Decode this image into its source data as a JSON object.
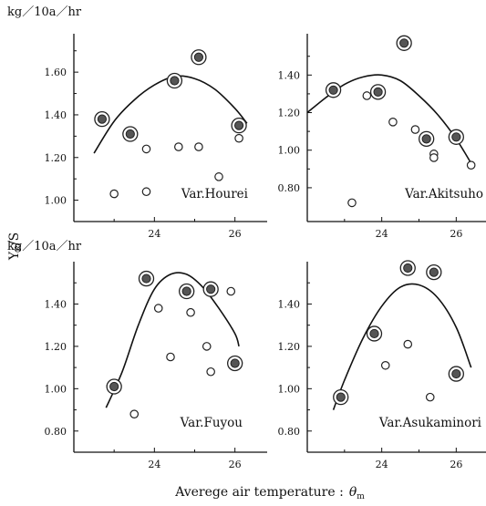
{
  "figure": {
    "y_label": "Y",
    "y_label_sub": "R",
    "y_label_tail": "/S",
    "x_label": "Averege air temperature :",
    "x_label_symbol": "θ",
    "x_label_symbol_sub": "m",
    "unit_top": "kg／10a／hr",
    "unit_bottom": "kg／10a／hr"
  },
  "chart_data": [
    {
      "type": "scatter",
      "label": "Var.Hourei",
      "xlim": [
        22.0,
        26.8
      ],
      "ylim": [
        0.9,
        1.78
      ],
      "xticks": [
        24,
        26
      ],
      "xtick_labels": [
        "24",
        "26"
      ],
      "yticks": [
        1.0,
        1.2,
        1.4,
        1.6
      ],
      "ytick_labels": [
        "1.00",
        "1.20",
        "1.40",
        "1.60"
      ],
      "curve": [
        [
          22.5,
          1.22
        ],
        [
          23.0,
          1.37
        ],
        [
          23.5,
          1.47
        ],
        [
          24.0,
          1.54
        ],
        [
          24.5,
          1.58
        ],
        [
          25.0,
          1.57
        ],
        [
          25.5,
          1.52
        ],
        [
          26.0,
          1.43
        ],
        [
          26.3,
          1.36
        ]
      ],
      "points_circled": [
        [
          22.7,
          1.38
        ],
        [
          23.4,
          1.31
        ],
        [
          24.5,
          1.56
        ],
        [
          25.1,
          1.67
        ],
        [
          26.1,
          1.35
        ]
      ],
      "points_open": [
        [
          23.0,
          1.03
        ],
        [
          23.8,
          1.24
        ],
        [
          23.8,
          1.04
        ],
        [
          24.6,
          1.25
        ],
        [
          25.1,
          1.25
        ],
        [
          25.6,
          1.11
        ],
        [
          26.1,
          1.29
        ]
      ]
    },
    {
      "type": "scatter",
      "label": "Var.Akitsuho",
      "xlim": [
        22.0,
        26.8
      ],
      "ylim": [
        0.62,
        1.62
      ],
      "xticks": [
        24,
        26
      ],
      "xtick_labels": [
        "24",
        "26"
      ],
      "yticks": [
        0.8,
        1.0,
        1.2,
        1.4
      ],
      "ytick_labels": [
        "0.80",
        "1.00",
        "1.20",
        "1.40"
      ],
      "curve": [
        [
          22.0,
          1.2
        ],
        [
          22.5,
          1.28
        ],
        [
          23.0,
          1.35
        ],
        [
          23.5,
          1.39
        ],
        [
          24.0,
          1.4
        ],
        [
          24.5,
          1.37
        ],
        [
          25.0,
          1.29
        ],
        [
          25.5,
          1.19
        ],
        [
          26.0,
          1.06
        ],
        [
          26.4,
          0.93
        ]
      ],
      "points_circled": [
        [
          22.7,
          1.32
        ],
        [
          23.9,
          1.31
        ],
        [
          24.6,
          1.57
        ],
        [
          25.2,
          1.06
        ],
        [
          26.0,
          1.07
        ]
      ],
      "points_open": [
        [
          23.2,
          0.72
        ],
        [
          23.6,
          1.29
        ],
        [
          24.3,
          1.15
        ],
        [
          24.9,
          1.11
        ],
        [
          25.4,
          0.98
        ],
        [
          25.4,
          0.96
        ],
        [
          26.4,
          0.92
        ]
      ]
    },
    {
      "type": "scatter",
      "label": "Var.Fuyou",
      "xlim": [
        22.0,
        26.8
      ],
      "ylim": [
        0.7,
        1.6
      ],
      "xticks": [
        24,
        26
      ],
      "xtick_labels": [
        "24",
        "26"
      ],
      "yticks": [
        0.8,
        1.0,
        1.2,
        1.4
      ],
      "ytick_labels": [
        "0.80",
        "1.00",
        "1.20",
        "1.40"
      ],
      "curve": [
        [
          22.8,
          0.91
        ],
        [
          23.2,
          1.08
        ],
        [
          23.6,
          1.3
        ],
        [
          24.0,
          1.47
        ],
        [
          24.4,
          1.54
        ],
        [
          24.8,
          1.54
        ],
        [
          25.2,
          1.48
        ],
        [
          25.6,
          1.38
        ],
        [
          26.0,
          1.26
        ],
        [
          26.1,
          1.2
        ]
      ],
      "points_circled": [
        [
          23.0,
          1.01
        ],
        [
          23.8,
          1.52
        ],
        [
          24.8,
          1.46
        ],
        [
          25.4,
          1.47
        ],
        [
          26.0,
          1.12
        ]
      ],
      "points_open": [
        [
          23.5,
          0.88
        ],
        [
          24.1,
          1.38
        ],
        [
          24.4,
          1.15
        ],
        [
          24.9,
          1.36
        ],
        [
          25.3,
          1.2
        ],
        [
          25.4,
          1.08
        ],
        [
          25.9,
          1.46
        ]
      ]
    },
    {
      "type": "scatter",
      "label": "Var.Asukaminori",
      "xlim": [
        22.0,
        26.8
      ],
      "ylim": [
        0.7,
        1.6
      ],
      "xticks": [
        24,
        26
      ],
      "xtick_labels": [
        "24",
        "26"
      ],
      "yticks": [
        0.8,
        1.0,
        1.2,
        1.4
      ],
      "ytick_labels": [
        "0.80",
        "1.00",
        "1.20",
        "1.40"
      ],
      "curve": [
        [
          22.7,
          0.9
        ],
        [
          23.0,
          1.04
        ],
        [
          23.5,
          1.24
        ],
        [
          24.0,
          1.39
        ],
        [
          24.5,
          1.48
        ],
        [
          25.0,
          1.49
        ],
        [
          25.5,
          1.43
        ],
        [
          26.0,
          1.29
        ],
        [
          26.4,
          1.1
        ]
      ],
      "points_circled": [
        [
          22.9,
          0.96
        ],
        [
          23.8,
          1.26
        ],
        [
          24.7,
          1.57
        ],
        [
          25.4,
          1.55
        ],
        [
          26.0,
          1.07
        ]
      ],
      "points_open": [
        [
          24.1,
          1.11
        ],
        [
          24.7,
          1.21
        ],
        [
          25.3,
          0.96
        ]
      ]
    }
  ]
}
